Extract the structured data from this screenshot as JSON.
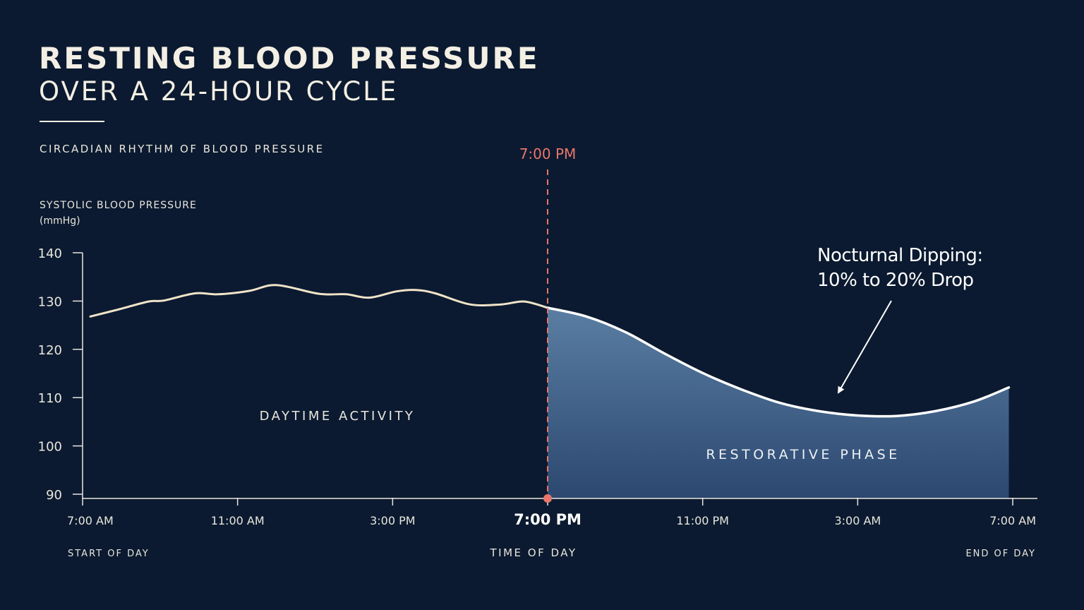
{
  "header": {
    "title": "RESTING BLOOD PRESSURE",
    "subtitle": "OVER A 24-HOUR CYCLE",
    "caption": "CIRCADIAN RHYTHM OF BLOOD PRESSURE"
  },
  "colors": {
    "background": "#0b1a30",
    "day_line": "#f0e4c8",
    "night_line": "#ffffff",
    "night_fill": "#5a7ea3",
    "marker": "#e8766a",
    "text": "#f1ede2"
  },
  "chart_data": {
    "type": "area",
    "title": "CIRCADIAN RHYTHM OF BLOOD PRESSURE",
    "ylabel_line1": "SYSTOLIC BLOOD PRESSURE",
    "ylabel_line2": "(mmHg)",
    "xlabel": "TIME OF DAY",
    "ylim": [
      90,
      140
    ],
    "xlim": [
      0,
      24
    ],
    "y_ticks": [
      90,
      100,
      110,
      120,
      130,
      140
    ],
    "x_ticks": [
      {
        "hours_after_start": 0,
        "label": "7:00 AM"
      },
      {
        "hours_after_start": 4,
        "label": "11:00 AM"
      },
      {
        "hours_after_start": 8,
        "label": "3:00 PM"
      },
      {
        "hours_after_start": 12,
        "label": "7:00 PM"
      },
      {
        "hours_after_start": 16,
        "label": "11:00 PM"
      },
      {
        "hours_after_start": 20,
        "label": "3:00 AM"
      },
      {
        "hours_after_start": 24,
        "label": "7:00 AM"
      }
    ],
    "highlight_tick_label": "7:00 PM",
    "start_label": "START OF DAY",
    "end_label": "END OF DAY",
    "marker": {
      "hours_after_start": 12,
      "label": "7:00 PM"
    },
    "series": [
      {
        "name": "DAYTIME ACTIVITY",
        "x": [
          0.2,
          0.9,
          1.7,
          2.1,
          2.9,
          3.5,
          4.3,
          5.0,
          6.1,
          6.8,
          7.4,
          8.1,
          8.6,
          9.1,
          10.0,
          10.8,
          11.4,
          12.0
        ],
        "y": [
          126.8,
          128.2,
          129.9,
          130.1,
          131.6,
          131.4,
          132.1,
          133.3,
          131.5,
          131.4,
          130.7,
          132.0,
          132.3,
          131.6,
          129.3,
          129.3,
          129.9,
          128.6
        ]
      },
      {
        "name": "RESTORATIVE PHASE",
        "x": [
          12.0,
          13.0,
          14.0,
          15.0,
          16.0,
          17.0,
          18.0,
          19.0,
          20.0,
          21.0,
          22.0,
          23.0,
          23.9
        ],
        "y": [
          128.6,
          126.8,
          123.6,
          119.2,
          115.1,
          111.7,
          108.9,
          107.2,
          106.3,
          106.2,
          107.2,
          109.2,
          112.1
        ]
      }
    ],
    "annotation": {
      "line1": "Nocturnal Dipping:",
      "line2": "10% to 20% Drop"
    }
  }
}
